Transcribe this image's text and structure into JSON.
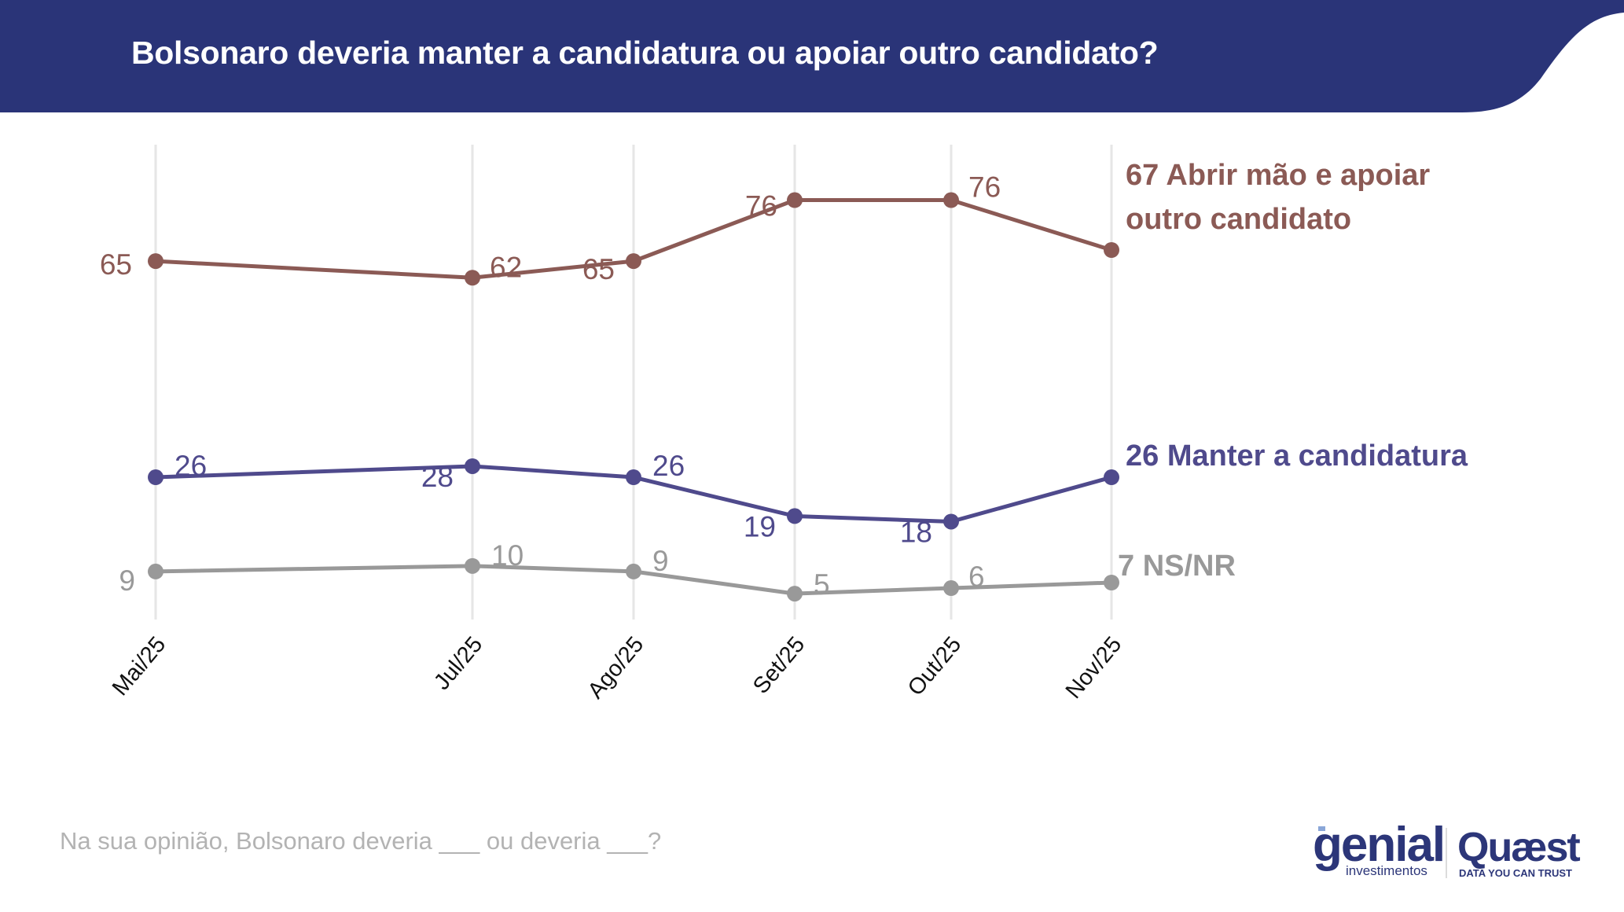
{
  "header": {
    "title": "Bolsonaro deveria manter a candidatura ou apoiar outro candidato?",
    "background_color": "#2a3478"
  },
  "chart_data": {
    "type": "line",
    "title": "Bolsonaro deveria manter a candidatura ou apoiar outro candidato?",
    "xlabel": "",
    "ylabel": "",
    "ylim": [
      0,
      80
    ],
    "grid": "vertical",
    "categories": [
      "Mai/25",
      "Jul/25",
      "Ago/25",
      "Set/25",
      "Out/25",
      "Nov/25"
    ],
    "series": [
      {
        "name": "Abrir mão e apoiar outro candidato",
        "end_label_lines": [
          "67 Abrir mão e apoiar",
          "outro candidato"
        ],
        "color": "#8b5a55",
        "values": [
          65,
          62,
          65,
          76,
          76,
          67
        ],
        "labels": [
          "65",
          "62",
          "65",
          "76",
          "76",
          ""
        ]
      },
      {
        "name": "Manter a candidatura",
        "end_label_lines": [
          "26 Manter a candidatura"
        ],
        "color": "#4f4a8c",
        "values": [
          26,
          28,
          26,
          19,
          18,
          26
        ],
        "labels": [
          "26",
          "28",
          "26",
          "19",
          "18",
          ""
        ]
      },
      {
        "name": "NS/NR",
        "end_label_lines": [
          "7 NS/NR"
        ],
        "color": "#999999",
        "values": [
          9,
          10,
          9,
          5,
          6,
          7
        ],
        "labels": [
          "9",
          "10",
          "9",
          "5",
          "6",
          ""
        ]
      }
    ]
  },
  "footnote": "Na sua opinião, Bolsonaro deveria ___ ou deveria ___?",
  "logos": {
    "genial_main": "genial",
    "genial_sub": "investimentos",
    "quaest_main": "Quæst",
    "quaest_sub": "DATA YOU CAN TRUST"
  }
}
